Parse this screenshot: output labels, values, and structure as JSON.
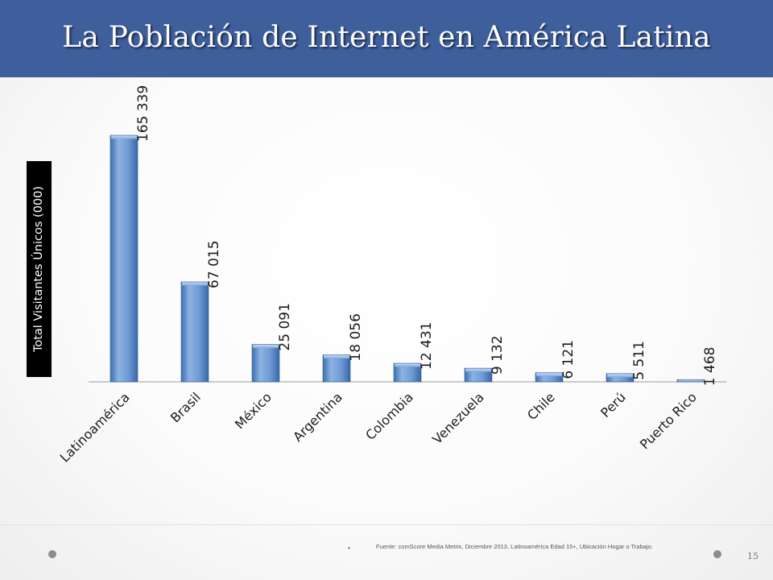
{
  "slide": {
    "title": "La Población de Internet en América Latina",
    "source_bullet": "•",
    "source": "Fuente: comScore Media Metrix, Diciembre 2013, Latinoamérica Edad 15+, Ubicación Hogar o Trabajo.",
    "page_number": "15"
  },
  "colors": {
    "header": "#3e5e9c",
    "bar": "#4f81bd",
    "bar_light": "#8eb4e3"
  },
  "chart_data": {
    "type": "bar",
    "title": "",
    "xlabel": "",
    "ylabel": "Total Visitantes Únicos (000)",
    "categories": [
      "Latinoamérica",
      "Brasil",
      "México",
      "Argentina",
      "Colombia",
      "Venezuela",
      "Chile",
      "Perú",
      "Puerto Rico"
    ],
    "values": [
      165339,
      67015,
      25091,
      18056,
      12431,
      9132,
      6121,
      5511,
      1468
    ],
    "labels": [
      "165 339",
      "67 015",
      "25 091",
      "18 056",
      "12 431",
      "9 132",
      "6 121",
      "5 511",
      "1 468"
    ],
    "ylim": [
      0,
      165339
    ],
    "grid": false,
    "legend": "none"
  }
}
